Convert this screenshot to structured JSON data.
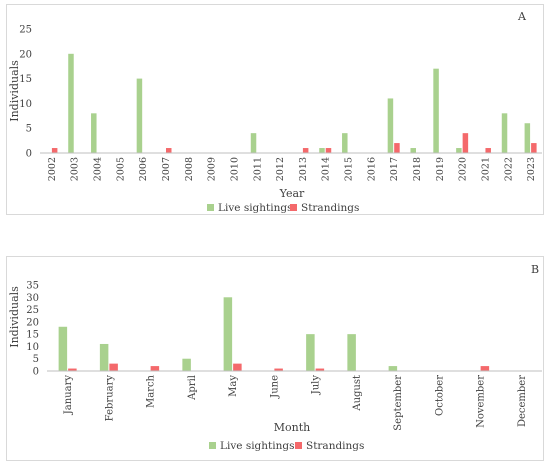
{
  "colors": {
    "live": "#a9d18e",
    "strand": "#f4696b",
    "axis": "#bfbfbf"
  },
  "chart_data": [
    {
      "type": "bar",
      "panel_label": "A",
      "xlabel": "Year",
      "ylabel": "Individuals",
      "ylim": [
        0,
        25
      ],
      "yticks": [
        0,
        5,
        10,
        15,
        20,
        25
      ],
      "grid": false,
      "legend_position": "bottom",
      "categories": [
        "2002",
        "2003",
        "2004",
        "2005",
        "2006",
        "2007",
        "2008",
        "2009",
        "2010",
        "2011",
        "2012",
        "2013",
        "2014",
        "2015",
        "2016",
        "2017",
        "2018",
        "2019",
        "2020",
        "2021",
        "2022",
        "2023"
      ],
      "series": [
        {
          "name": "Live sightings",
          "values": [
            0,
            20,
            8,
            0,
            15,
            0,
            0,
            0,
            0,
            4,
            0,
            0,
            1,
            4,
            0,
            11,
            1,
            17,
            1,
            0,
            8,
            6
          ]
        },
        {
          "name": "Strandings",
          "values": [
            1,
            0,
            0,
            0,
            0,
            1,
            0,
            0,
            0,
            0,
            0,
            1,
            1,
            0,
            0,
            2,
            0,
            0,
            4,
            1,
            0,
            2
          ]
        }
      ]
    },
    {
      "type": "bar",
      "panel_label": "B",
      "xlabel": "Month",
      "ylabel": "Individuals",
      "ylim": [
        0,
        35
      ],
      "yticks": [
        0,
        5,
        10,
        15,
        20,
        25,
        30,
        35
      ],
      "grid": false,
      "legend_position": "bottom",
      "categories": [
        "January",
        "February",
        "March",
        "April",
        "May",
        "June",
        "July",
        "August",
        "September",
        "October",
        "November",
        "December"
      ],
      "series": [
        {
          "name": "Live sightings",
          "values": [
            18,
            11,
            0,
            5,
            30,
            0,
            15,
            15,
            2,
            0,
            0,
            0
          ]
        },
        {
          "name": "Strandings",
          "values": [
            1,
            3,
            2,
            0,
            3,
            1,
            1,
            0,
            0,
            0,
            2,
            0
          ]
        }
      ]
    }
  ]
}
